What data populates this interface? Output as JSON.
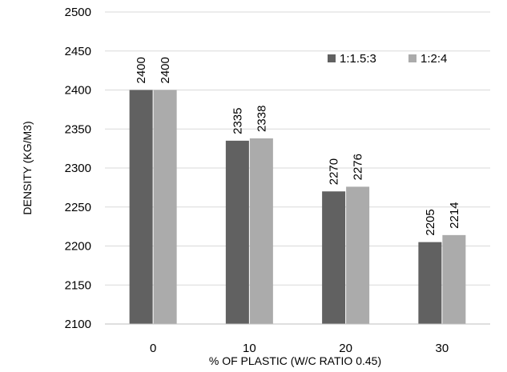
{
  "chart_data": {
    "type": "bar",
    "title": "",
    "xlabel": "% OF PLASTIC (W/C RATIO 0.45)",
    "ylabel": "DENSITY (KG/M3)",
    "categories": [
      "0",
      "10",
      "20",
      "30"
    ],
    "series": [
      {
        "name": "1:1.5:3",
        "values": [
          2400,
          2335,
          2270,
          2205
        ],
        "color": "#616161"
      },
      {
        "name": "1:2:4",
        "values": [
          2400,
          2338,
          2276,
          2214
        ],
        "color": "#ababab"
      }
    ],
    "ylim": [
      2100,
      2500
    ],
    "yticks": [
      2100,
      2150,
      2200,
      2250,
      2300,
      2350,
      2400,
      2450,
      2500
    ],
    "grid": true,
    "legend_position": "top-right",
    "data_labels": true
  }
}
